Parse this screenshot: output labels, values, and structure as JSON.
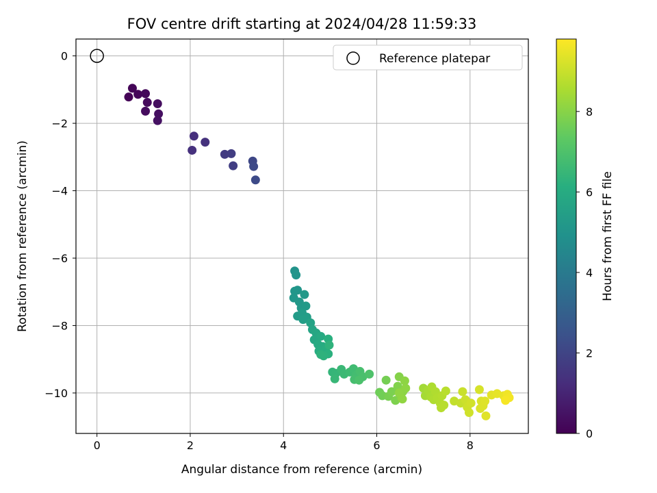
{
  "chart_data": {
    "type": "scatter",
    "title": "FOV centre drift starting at 2024/04/28 11:59:33",
    "xlabel": "Angular distance from reference (arcmin)",
    "ylabel": "Rotation from reference (arcmin)",
    "xlim": [
      -0.45,
      9.25
    ],
    "ylim": [
      -11.2,
      0.5
    ],
    "xticks": [
      "0",
      "2",
      "4",
      "6",
      "8"
    ],
    "yticks": [
      "0",
      "−2",
      "−4",
      "−6",
      "−8",
      "−10"
    ],
    "grid": true,
    "legend": {
      "position": "top-right",
      "label": "Reference platepar"
    },
    "reference_point": {
      "x": 0,
      "y": 0
    },
    "colorbar": {
      "label": "Hours from first FF file",
      "range": [
        0,
        9.8
      ],
      "ticks": [
        "0",
        "2",
        "4",
        "6",
        "8"
      ],
      "colormap": "viridis"
    },
    "points": [
      {
        "x": 0.68,
        "y": -1.22,
        "c": 0.05
      },
      {
        "x": 0.76,
        "y": -0.96,
        "c": 0.1
      },
      {
        "x": 0.88,
        "y": -1.14,
        "c": 0.15
      },
      {
        "x": 1.04,
        "y": -1.12,
        "c": 0.2
      },
      {
        "x": 1.08,
        "y": -1.38,
        "c": 0.25
      },
      {
        "x": 1.04,
        "y": -1.64,
        "c": 0.3
      },
      {
        "x": 1.3,
        "y": -1.42,
        "c": 0.35
      },
      {
        "x": 1.32,
        "y": -1.72,
        "c": 0.4
      },
      {
        "x": 1.3,
        "y": -1.92,
        "c": 0.45
      },
      {
        "x": 2.08,
        "y": -2.38,
        "c": 1.3
      },
      {
        "x": 2.04,
        "y": -2.8,
        "c": 1.35
      },
      {
        "x": 2.32,
        "y": -2.56,
        "c": 1.4
      },
      {
        "x": 2.74,
        "y": -2.92,
        "c": 1.7
      },
      {
        "x": 2.88,
        "y": -2.9,
        "c": 1.75
      },
      {
        "x": 2.92,
        "y": -3.26,
        "c": 1.8
      },
      {
        "x": 3.34,
        "y": -3.12,
        "c": 2.1
      },
      {
        "x": 3.36,
        "y": -3.28,
        "c": 2.15
      },
      {
        "x": 3.4,
        "y": -3.68,
        "c": 2.2
      },
      {
        "x": 4.24,
        "y": -6.38,
        "c": 5.0
      },
      {
        "x": 4.27,
        "y": -6.5,
        "c": 5.05
      },
      {
        "x": 4.24,
        "y": -6.98,
        "c": 5.1
      },
      {
        "x": 4.3,
        "y": -6.95,
        "c": 5.12
      },
      {
        "x": 4.22,
        "y": -7.18,
        "c": 5.15
      },
      {
        "x": 4.34,
        "y": -7.3,
        "c": 5.2
      },
      {
        "x": 4.45,
        "y": -7.08,
        "c": 5.22
      },
      {
        "x": 4.38,
        "y": -7.48,
        "c": 5.25
      },
      {
        "x": 4.48,
        "y": -7.42,
        "c": 5.3
      },
      {
        "x": 4.3,
        "y": -7.72,
        "c": 5.32
      },
      {
        "x": 4.4,
        "y": -7.62,
        "c": 5.35
      },
      {
        "x": 4.5,
        "y": -7.75,
        "c": 5.4
      },
      {
        "x": 4.42,
        "y": -7.82,
        "c": 5.45
      },
      {
        "x": 4.58,
        "y": -7.92,
        "c": 5.6
      },
      {
        "x": 4.62,
        "y": -8.12,
        "c": 5.7
      },
      {
        "x": 4.7,
        "y": -8.22,
        "c": 5.8
      },
      {
        "x": 4.66,
        "y": -8.42,
        "c": 5.85
      },
      {
        "x": 4.8,
        "y": -8.32,
        "c": 5.9
      },
      {
        "x": 4.74,
        "y": -8.56,
        "c": 5.95
      },
      {
        "x": 4.84,
        "y": -8.62,
        "c": 6.0
      },
      {
        "x": 4.76,
        "y": -8.76,
        "c": 6.05
      },
      {
        "x": 4.9,
        "y": -8.72,
        "c": 6.1
      },
      {
        "x": 4.96,
        "y": -8.4,
        "c": 6.15
      },
      {
        "x": 4.96,
        "y": -8.84,
        "c": 6.2
      },
      {
        "x": 4.86,
        "y": -8.9,
        "c": 6.25
      },
      {
        "x": 4.8,
        "y": -8.86,
        "c": 6.28
      },
      {
        "x": 4.98,
        "y": -8.58,
        "c": 6.3
      },
      {
        "x": 5.05,
        "y": -9.38,
        "c": 6.4
      },
      {
        "x": 5.12,
        "y": -9.42,
        "c": 6.45
      },
      {
        "x": 5.1,
        "y": -9.58,
        "c": 6.5
      },
      {
        "x": 5.24,
        "y": -9.3,
        "c": 6.55
      },
      {
        "x": 5.3,
        "y": -9.44,
        "c": 6.6
      },
      {
        "x": 5.42,
        "y": -9.38,
        "c": 6.65
      },
      {
        "x": 5.5,
        "y": -9.28,
        "c": 6.7
      },
      {
        "x": 5.56,
        "y": -9.46,
        "c": 6.75
      },
      {
        "x": 5.52,
        "y": -9.6,
        "c": 6.8
      },
      {
        "x": 5.64,
        "y": -9.36,
        "c": 6.85
      },
      {
        "x": 5.7,
        "y": -9.52,
        "c": 6.9
      },
      {
        "x": 5.62,
        "y": -9.62,
        "c": 6.95
      },
      {
        "x": 5.84,
        "y": -9.44,
        "c": 7.0
      },
      {
        "x": 6.06,
        "y": -9.98,
        "c": 7.6
      },
      {
        "x": 6.12,
        "y": -10.08,
        "c": 7.65
      },
      {
        "x": 6.2,
        "y": -9.62,
        "c": 7.7
      },
      {
        "x": 6.25,
        "y": -10.1,
        "c": 7.75
      },
      {
        "x": 6.32,
        "y": -9.96,
        "c": 7.8
      },
      {
        "x": 6.4,
        "y": -10.22,
        "c": 7.85
      },
      {
        "x": 6.45,
        "y": -9.8,
        "c": 7.9
      },
      {
        "x": 6.48,
        "y": -9.52,
        "c": 7.95
      },
      {
        "x": 6.52,
        "y": -10.12,
        "c": 8.0
      },
      {
        "x": 6.56,
        "y": -9.96,
        "c": 8.05
      },
      {
        "x": 6.6,
        "y": -9.64,
        "c": 8.08
      },
      {
        "x": 6.62,
        "y": -9.86,
        "c": 8.1
      },
      {
        "x": 6.48,
        "y": -10.0,
        "c": 8.12
      },
      {
        "x": 6.55,
        "y": -10.18,
        "c": 8.14
      },
      {
        "x": 7.0,
        "y": -9.86,
        "c": 8.4
      },
      {
        "x": 7.04,
        "y": -10.08,
        "c": 8.45
      },
      {
        "x": 7.1,
        "y": -9.92,
        "c": 8.5
      },
      {
        "x": 7.16,
        "y": -10.12,
        "c": 8.55
      },
      {
        "x": 7.18,
        "y": -9.82,
        "c": 8.58
      },
      {
        "x": 7.22,
        "y": -10.2,
        "c": 8.6
      },
      {
        "x": 7.26,
        "y": -9.96,
        "c": 8.62
      },
      {
        "x": 7.3,
        "y": -10.14,
        "c": 8.65
      },
      {
        "x": 7.36,
        "y": -10.3,
        "c": 8.68
      },
      {
        "x": 7.4,
        "y": -10.08,
        "c": 8.7
      },
      {
        "x": 7.38,
        "y": -10.44,
        "c": 8.72
      },
      {
        "x": 7.44,
        "y": -10.36,
        "c": 8.74
      },
      {
        "x": 7.48,
        "y": -9.94,
        "c": 8.76
      },
      {
        "x": 7.66,
        "y": -10.24,
        "c": 8.9
      },
      {
        "x": 7.8,
        "y": -10.3,
        "c": 8.95
      },
      {
        "x": 7.84,
        "y": -9.96,
        "c": 9.0
      },
      {
        "x": 7.9,
        "y": -10.2,
        "c": 9.05
      },
      {
        "x": 7.94,
        "y": -10.42,
        "c": 9.08
      },
      {
        "x": 7.98,
        "y": -10.58,
        "c": 9.1
      },
      {
        "x": 8.02,
        "y": -10.3,
        "c": 9.12
      },
      {
        "x": 8.2,
        "y": -9.9,
        "c": 9.2
      },
      {
        "x": 8.24,
        "y": -10.24,
        "c": 9.25
      },
      {
        "x": 8.22,
        "y": -10.46,
        "c": 9.28
      },
      {
        "x": 8.28,
        "y": -10.38,
        "c": 9.3
      },
      {
        "x": 8.32,
        "y": -10.24,
        "c": 9.32
      },
      {
        "x": 8.34,
        "y": -10.68,
        "c": 9.35
      },
      {
        "x": 8.46,
        "y": -10.06,
        "c": 9.4
      },
      {
        "x": 8.58,
        "y": -10.02,
        "c": 9.45
      },
      {
        "x": 8.72,
        "y": -10.08,
        "c": 9.5
      },
      {
        "x": 8.76,
        "y": -10.18,
        "c": 9.55
      },
      {
        "x": 8.8,
        "y": -10.04,
        "c": 9.6
      },
      {
        "x": 8.84,
        "y": -10.14,
        "c": 9.65
      },
      {
        "x": 8.76,
        "y": -10.22,
        "c": 9.7
      }
    ]
  }
}
